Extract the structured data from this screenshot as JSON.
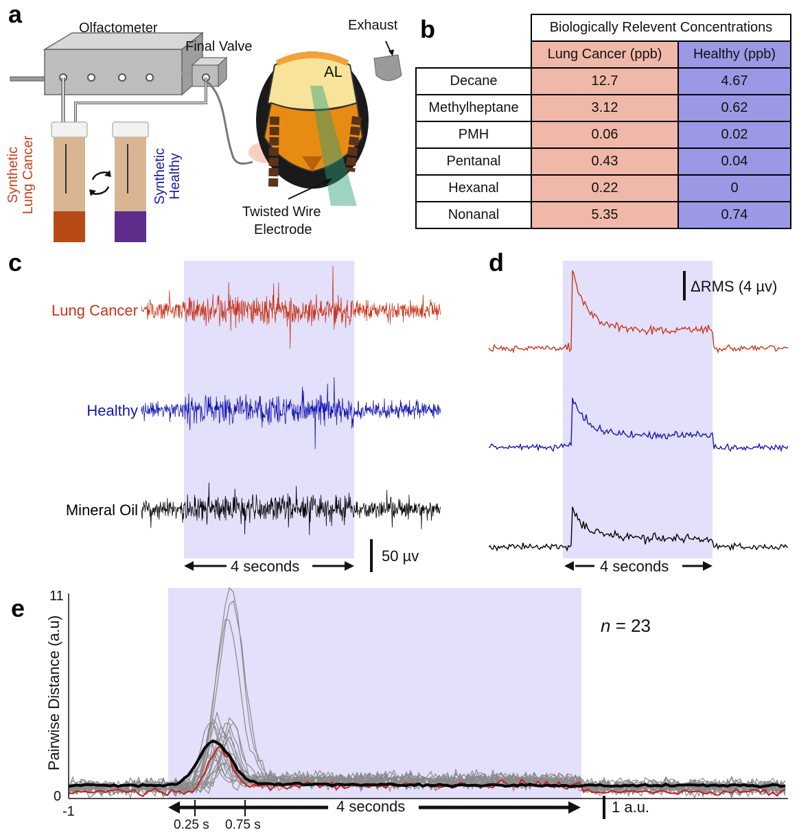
{
  "panels": {
    "a": {
      "letter": "a",
      "olfactometer": "Olfactometer",
      "final_valve": "Final Valve",
      "exhaust": "Exhaust",
      "antennal_lobe": "AL",
      "electrode_line1": "Twisted Wire",
      "electrode_line2": "Electrode",
      "vial1_line1": "Synthetic",
      "vial1_line2": "Lung Cancer",
      "vial2_line1": "Synthetic",
      "vial2_line2": "Healthy",
      "colors": {
        "lung_cancer": "#c8401e",
        "healthy": "#1a1aa0",
        "vial_lung": "#b84a18",
        "vial_healthy": "#5e2d8c"
      }
    },
    "b": {
      "letter": "b",
      "title": "Biologically Relevent Concentrations",
      "col_lung": "Lung Cancer (ppb)",
      "col_healthy": "Healthy (ppb)",
      "rows": [
        {
          "name": "Decane",
          "lung": "12.7",
          "healthy": "4.67"
        },
        {
          "name": "Methylheptane",
          "lung": "3.12",
          "healthy": "0.62"
        },
        {
          "name": "PMH",
          "lung": "0.06",
          "healthy": "0.02"
        },
        {
          "name": "Pentanal",
          "lung": "0.43",
          "healthy": "0.04"
        },
        {
          "name": "Hexanal",
          "lung": "0.22",
          "healthy": "0"
        },
        {
          "name": "Nonanal",
          "lung": "5.35",
          "healthy": "0.74"
        }
      ],
      "colors": {
        "lung": "#f0b8a8",
        "healthy": "#9b98e6"
      }
    },
    "c": {
      "letter": "c",
      "trace_labels": [
        "Lung Cancer",
        "Healthy",
        "Mineral Oil"
      ],
      "time_label": "4 seconds",
      "scale_label": "50 µv",
      "colors": [
        "#c8341a",
        "#1616b0",
        "#000000"
      ]
    },
    "d": {
      "letter": "d",
      "scale_label": "ΔRMS (4 µv)",
      "time_label": "4 seconds"
    },
    "e": {
      "letter": "e",
      "ylabel": "Pairwise Distance (a.u)",
      "y_ticks": [
        "11",
        "0"
      ],
      "x_tick_left": "-1",
      "time_label": "4 seconds",
      "marker1": "0.25 s",
      "marker2": "0.75 s",
      "scale_label": "1 a.u.",
      "n_label_italic": "n",
      "n_label_rest": " = 23",
      "ylim": [
        0,
        11
      ],
      "colors": {
        "mean": "#000000",
        "example": "#d01818",
        "individual": "#8a8a8a",
        "stimulus": "#e2e0fa"
      }
    }
  }
}
